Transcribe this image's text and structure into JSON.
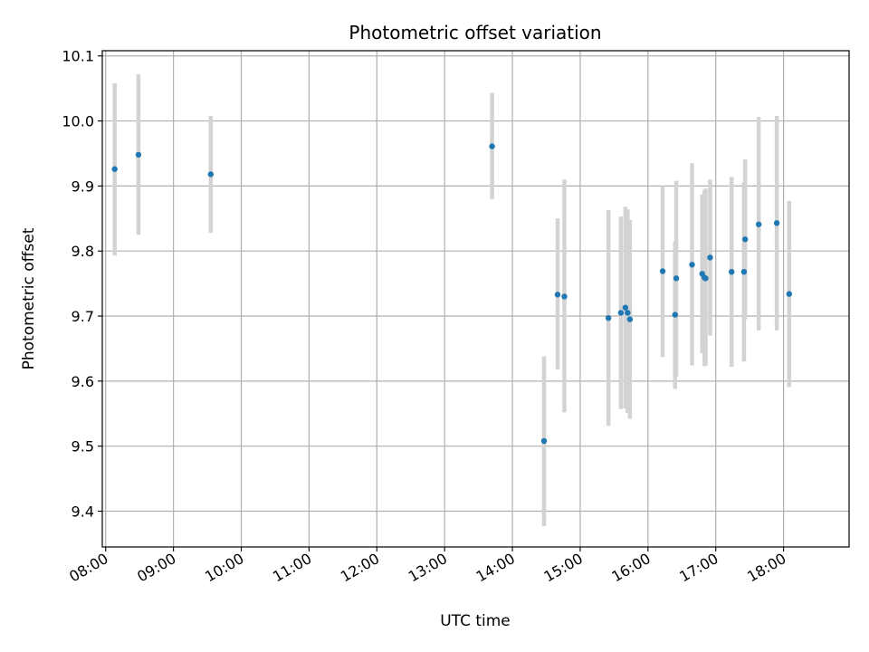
{
  "chart_data": {
    "type": "scatter",
    "title": "Photometric offset variation",
    "xlabel": "UTC time",
    "ylabel": "Photometric offset",
    "x_ticks": [
      "08:00",
      "09:00",
      "10:00",
      "11:00",
      "12:00",
      "13:00",
      "14:00",
      "15:00",
      "16:00",
      "17:00",
      "18:00"
    ],
    "y_ticks": [
      "9.4",
      "9.5",
      "9.6",
      "9.7",
      "9.8",
      "9.9",
      "10.0",
      "10.1"
    ],
    "xlim": [
      "07:57",
      "18:58"
    ],
    "ylim": [
      9.345,
      10.108
    ],
    "grid": true,
    "colors": {
      "point": "#1f77b4",
      "errorbar": "#d3d3d3",
      "grid": "#b0b0b0"
    },
    "points": [
      {
        "x": "08:08",
        "y": 9.926,
        "ylo": 9.793,
        "yhi": 10.058
      },
      {
        "x": "08:29",
        "y": 9.948,
        "ylo": 9.825,
        "yhi": 10.072
      },
      {
        "x": "09:33",
        "y": 9.918,
        "ylo": 9.828,
        "yhi": 10.008
      },
      {
        "x": "13:42",
        "y": 9.961,
        "ylo": 9.88,
        "yhi": 10.043
      },
      {
        "x": "14:28",
        "y": 9.508,
        "ylo": 9.377,
        "yhi": 9.638
      },
      {
        "x": "14:40",
        "y": 9.733,
        "ylo": 9.618,
        "yhi": 9.85
      },
      {
        "x": "14:46",
        "y": 9.73,
        "ylo": 9.552,
        "yhi": 9.91
      },
      {
        "x": "15:25",
        "y": 9.697,
        "ylo": 9.531,
        "yhi": 9.863
      },
      {
        "x": "15:36",
        "y": 9.705,
        "ylo": 9.557,
        "yhi": 9.853
      },
      {
        "x": "15:40",
        "y": 9.713,
        "ylo": 9.558,
        "yhi": 9.868
      },
      {
        "x": "15:42",
        "y": 9.705,
        "ylo": 9.551,
        "yhi": 9.864
      },
      {
        "x": "15:44",
        "y": 9.695,
        "ylo": 9.542,
        "yhi": 9.848
      },
      {
        "x": "16:13",
        "y": 9.769,
        "ylo": 9.637,
        "yhi": 9.9
      },
      {
        "x": "16:24",
        "y": 9.702,
        "ylo": 9.588,
        "yhi": 9.815
      },
      {
        "x": "16:25",
        "y": 9.758,
        "ylo": 9.607,
        "yhi": 9.908
      },
      {
        "x": "16:39",
        "y": 9.779,
        "ylo": 9.624,
        "yhi": 9.935
      },
      {
        "x": "16:48",
        "y": 9.765,
        "ylo": 9.643,
        "yhi": 9.887
      },
      {
        "x": "16:50",
        "y": 9.759,
        "ylo": 9.623,
        "yhi": 9.893
      },
      {
        "x": "16:51",
        "y": 9.758,
        "ylo": 9.624,
        "yhi": 9.896
      },
      {
        "x": "16:55",
        "y": 9.79,
        "ylo": 9.67,
        "yhi": 9.91
      },
      {
        "x": "17:14",
        "y": 9.768,
        "ylo": 9.622,
        "yhi": 9.914
      },
      {
        "x": "17:25",
        "y": 9.768,
        "ylo": 9.63,
        "yhi": 9.906
      },
      {
        "x": "17:26",
        "y": 9.818,
        "ylo": 9.695,
        "yhi": 9.941
      },
      {
        "x": "17:38",
        "y": 9.841,
        "ylo": 9.678,
        "yhi": 10.006
      },
      {
        "x": "17:54",
        "y": 9.843,
        "ylo": 9.678,
        "yhi": 10.008
      },
      {
        "x": "18:05",
        "y": 9.734,
        "ylo": 9.591,
        "yhi": 9.877
      }
    ]
  }
}
